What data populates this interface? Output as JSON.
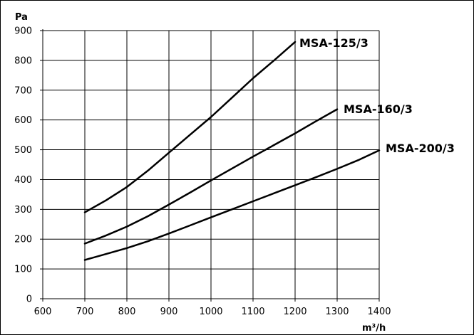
{
  "chart_data": {
    "type": "line",
    "title": "",
    "xlabel": "m³/h",
    "ylabel": "Pa",
    "xlim": [
      600,
      1400
    ],
    "ylim": [
      0,
      900
    ],
    "xticks": [
      600,
      700,
      800,
      900,
      1000,
      1100,
      1200,
      1300,
      1400
    ],
    "yticks": [
      0,
      100,
      200,
      300,
      400,
      500,
      600,
      700,
      800,
      900
    ],
    "grid": true,
    "legend": "none",
    "series": [
      {
        "name": "MSA-125/3",
        "x": [
          700,
          750,
          800,
          850,
          900,
          950,
          1000,
          1050,
          1100,
          1150,
          1200
        ],
        "y": [
          290,
          330,
          375,
          430,
          490,
          550,
          610,
          675,
          740,
          800,
          862
        ]
      },
      {
        "name": "MSA-160/3",
        "x": [
          700,
          750,
          800,
          850,
          900,
          950,
          1000,
          1050,
          1100,
          1150,
          1200,
          1250,
          1300
        ],
        "y": [
          185,
          212,
          242,
          277,
          316,
          356,
          397,
          437,
          477,
          516,
          555,
          596,
          636
        ]
      },
      {
        "name": "MSA-200/3",
        "x": [
          700,
          750,
          800,
          850,
          900,
          950,
          1000,
          1050,
          1100,
          1150,
          1200,
          1250,
          1300,
          1350,
          1400
        ],
        "y": [
          130,
          150,
          170,
          193,
          219,
          246,
          273,
          300,
          327,
          354,
          381,
          408,
          436,
          465,
          498
        ]
      }
    ]
  }
}
